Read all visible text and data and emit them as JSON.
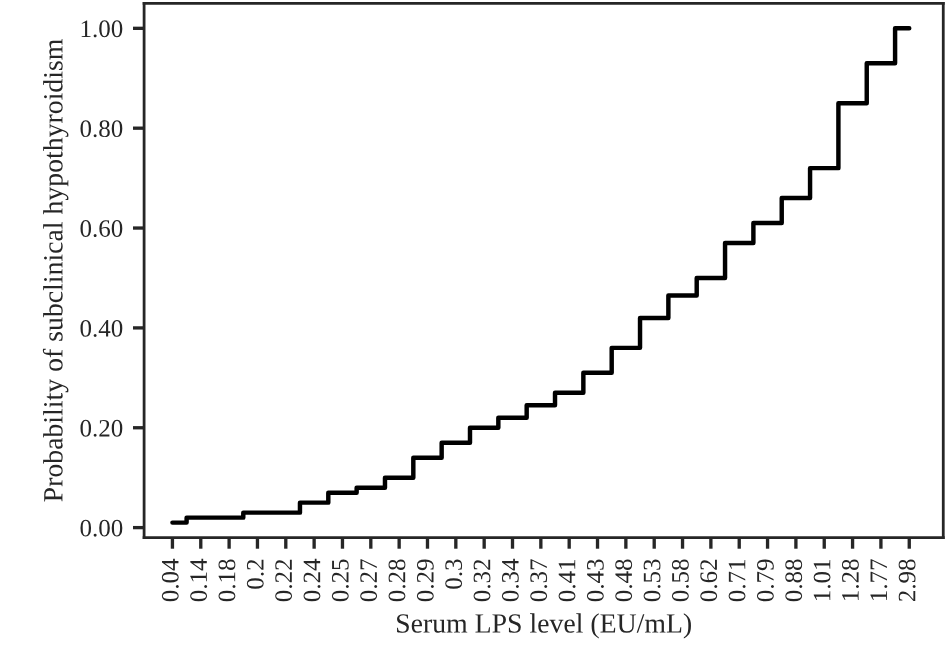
{
  "chart_data": {
    "type": "step",
    "xlabel": "Serum LPS level (EU/mL)",
    "ylabel": "Probability of subclinical hypothyroidism",
    "categories": [
      "0.04",
      "0.14",
      "0.18",
      "0.2",
      "0.22",
      "0.24",
      "0.25",
      "0.27",
      "0.28",
      "0.29",
      "0.3",
      "0.32",
      "0.34",
      "0.37",
      "0.41",
      "0.43",
      "0.48",
      "0.53",
      "0.58",
      "0.62",
      "0.71",
      "0.79",
      "0.88",
      "1.01",
      "1.28",
      "1.77",
      "2.98"
    ],
    "series": [
      {
        "color": "#000000",
        "values": [
          0.01,
          0.02,
          0.02,
          0.03,
          0.03,
          0.05,
          0.07,
          0.08,
          0.1,
          0.14,
          0.17,
          0.2,
          0.22,
          0.245,
          0.27,
          0.31,
          0.36,
          0.42,
          0.465,
          0.5,
          0.57,
          0.61,
          0.66,
          0.72,
          0.85,
          0.93,
          1.0
        ]
      }
    ],
    "ylim": [
      -0.02,
      1.05
    ],
    "yticks": [
      {
        "value": 0,
        "label": "0.00"
      },
      {
        "value": 0.2,
        "label": "0.20"
      },
      {
        "value": 0.4,
        "label": "0.40"
      },
      {
        "value": 0.6,
        "label": "0.60"
      },
      {
        "value": 0.8,
        "label": "0.80"
      },
      {
        "value": 1,
        "label": "1.00"
      }
    ],
    "grid": false,
    "line_style": "solid",
    "marker": "none"
  }
}
